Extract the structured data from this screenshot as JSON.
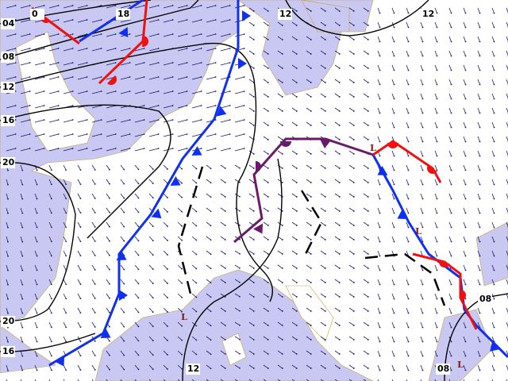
{
  "isobar_labels": [
    "04",
    "08",
    "12",
    "16",
    "20",
    "20",
    "16",
    "0",
    "18",
    "12",
    "12",
    "12",
    "08",
    "08"
  ],
  "lows": [
    "L",
    "L",
    "L",
    "L"
  ]
}
